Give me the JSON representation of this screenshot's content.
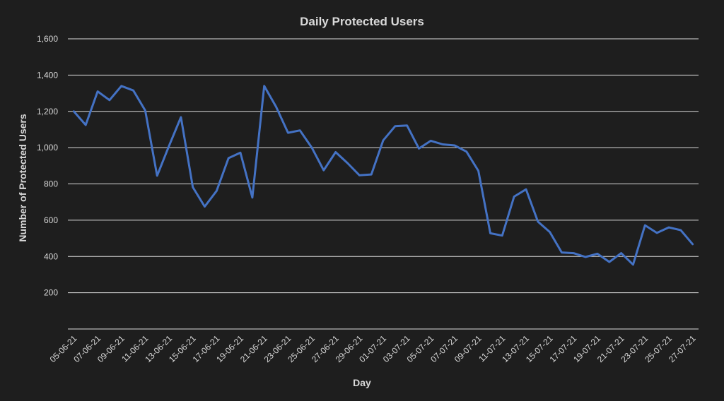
{
  "chart_data": {
    "type": "line",
    "title": "Daily Protected Users",
    "xlabel": "Day",
    "ylabel": "Number of Protected Users",
    "ylim": [
      0,
      1600
    ],
    "yticks": [
      200,
      400,
      600,
      800,
      1000,
      1200,
      1400,
      1600
    ],
    "ytick_labels": [
      "200",
      "400",
      "600",
      "800",
      "1,000",
      "1,200",
      "1,400",
      "1,600"
    ],
    "grid": true,
    "legend": "none",
    "line_color": "#4472c4",
    "x": [
      "05-06-21",
      "06-06-21",
      "07-06-21",
      "08-06-21",
      "09-06-21",
      "10-06-21",
      "11-06-21",
      "12-06-21",
      "13-06-21",
      "14-06-21",
      "15-06-21",
      "16-06-21",
      "17-06-21",
      "18-06-21",
      "19-06-21",
      "20-06-21",
      "21-06-21",
      "22-06-21",
      "23-06-21",
      "24-06-21",
      "25-06-21",
      "26-06-21",
      "27-06-21",
      "28-06-21",
      "29-06-21",
      "30-06-21",
      "01-07-21",
      "02-07-21",
      "03-07-21",
      "04-07-21",
      "05-07-21",
      "06-07-21",
      "07-07-21",
      "08-07-21",
      "09-07-21",
      "10-07-21",
      "11-07-21",
      "12-07-21",
      "13-07-21",
      "14-07-21",
      "15-07-21",
      "16-07-21",
      "17-07-21",
      "18-07-21",
      "19-07-21",
      "20-07-21",
      "21-07-21",
      "22-07-21",
      "23-07-21",
      "24-07-21",
      "25-07-21",
      "26-07-21",
      "27-07-21"
    ],
    "x_tick_labels": [
      "05-06-21",
      "07-06-21",
      "09-06-21",
      "11-06-21",
      "13-06-21",
      "15-06-21",
      "17-06-21",
      "19-06-21",
      "21-06-21",
      "23-06-21",
      "25-06-21",
      "27-06-21",
      "29-06-21",
      "01-07-21",
      "03-07-21",
      "05-07-21",
      "07-07-21",
      "09-07-21",
      "11-07-21",
      "13-07-21",
      "15-07-21",
      "17-07-21",
      "19-07-21",
      "21-07-21",
      "23-07-21",
      "25-07-21",
      "27-07-21"
    ],
    "series": [
      {
        "values": [
          1200,
          1125,
          1310,
          1262,
          1340,
          1315,
          1205,
          845,
          1010,
          1168,
          782,
          675,
          762,
          942,
          972,
          725,
          1340,
          1225,
          1082,
          1095,
          1000,
          875,
          975,
          915,
          848,
          852,
          1040,
          1118,
          1122,
          995,
          1038,
          1018,
          1012,
          978,
          872,
          528,
          515,
          730,
          770,
          592,
          535,
          422,
          418,
          397,
          415,
          370,
          418,
          355,
          572,
          530,
          560,
          545,
          468
        ]
      }
    ]
  }
}
